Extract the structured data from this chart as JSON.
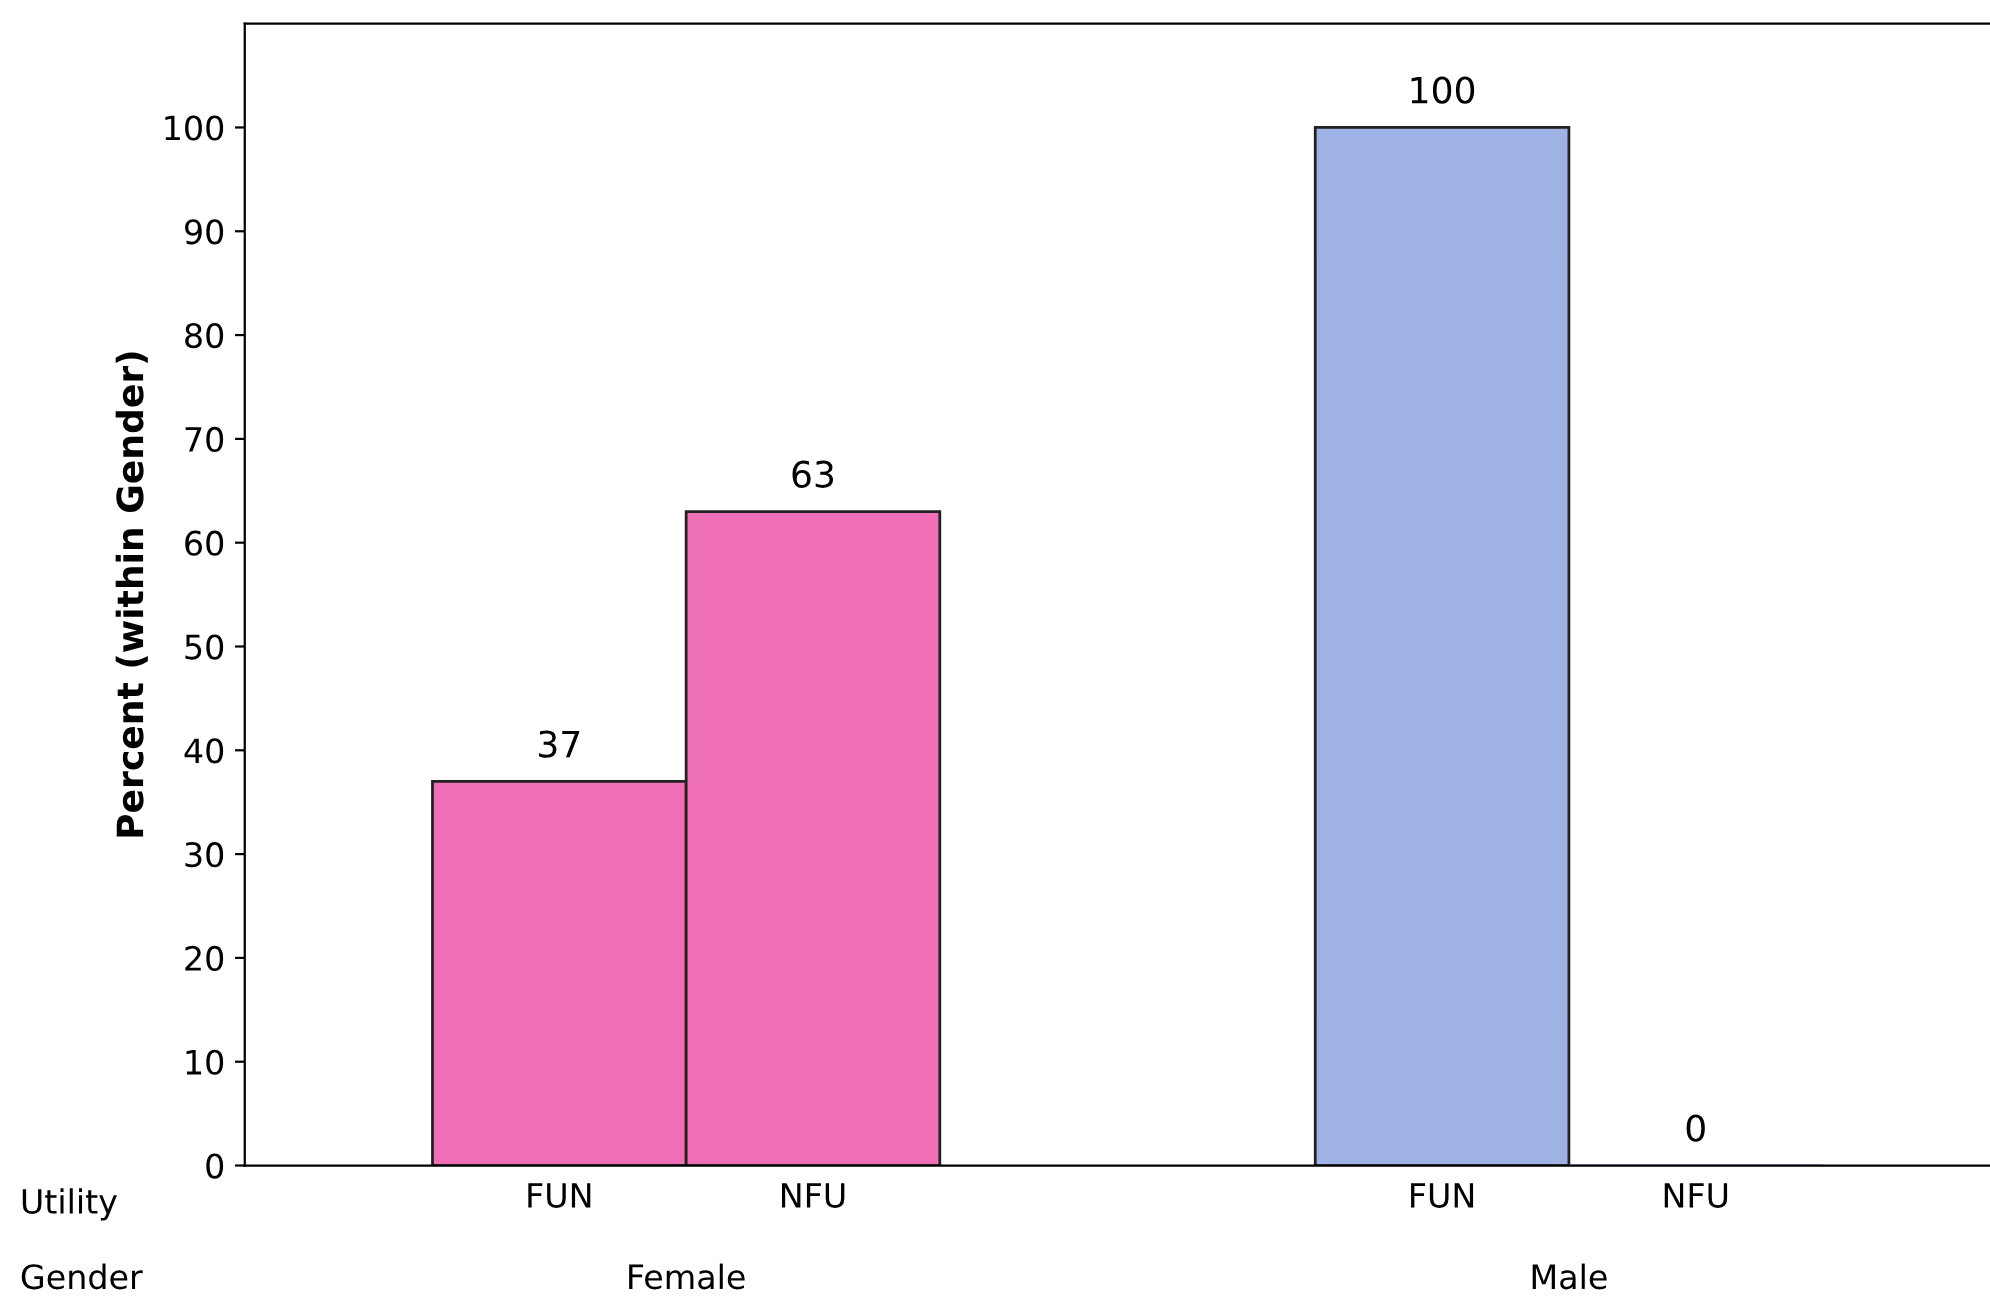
{
  "chart_data": {
    "type": "bar",
    "ylabel": "Percent (within Gender)",
    "categories": [
      "FUN",
      "NFU",
      "FUN",
      "NFU"
    ],
    "values": [
      37,
      63,
      100,
      0
    ],
    "colors": [
      "#ef6fb6",
      "#ef6fb6",
      "#9fb2e6",
      "#9fb2e6"
    ],
    "ylim": [
      0,
      110
    ],
    "yticks": [
      0,
      10,
      20,
      30,
      40,
      50,
      60,
      70,
      80,
      90,
      100
    ],
    "data_labels": true,
    "grid": false,
    "legend": false,
    "annotations": [
      "Utility",
      "Gender",
      "Female",
      "Male"
    ]
  }
}
